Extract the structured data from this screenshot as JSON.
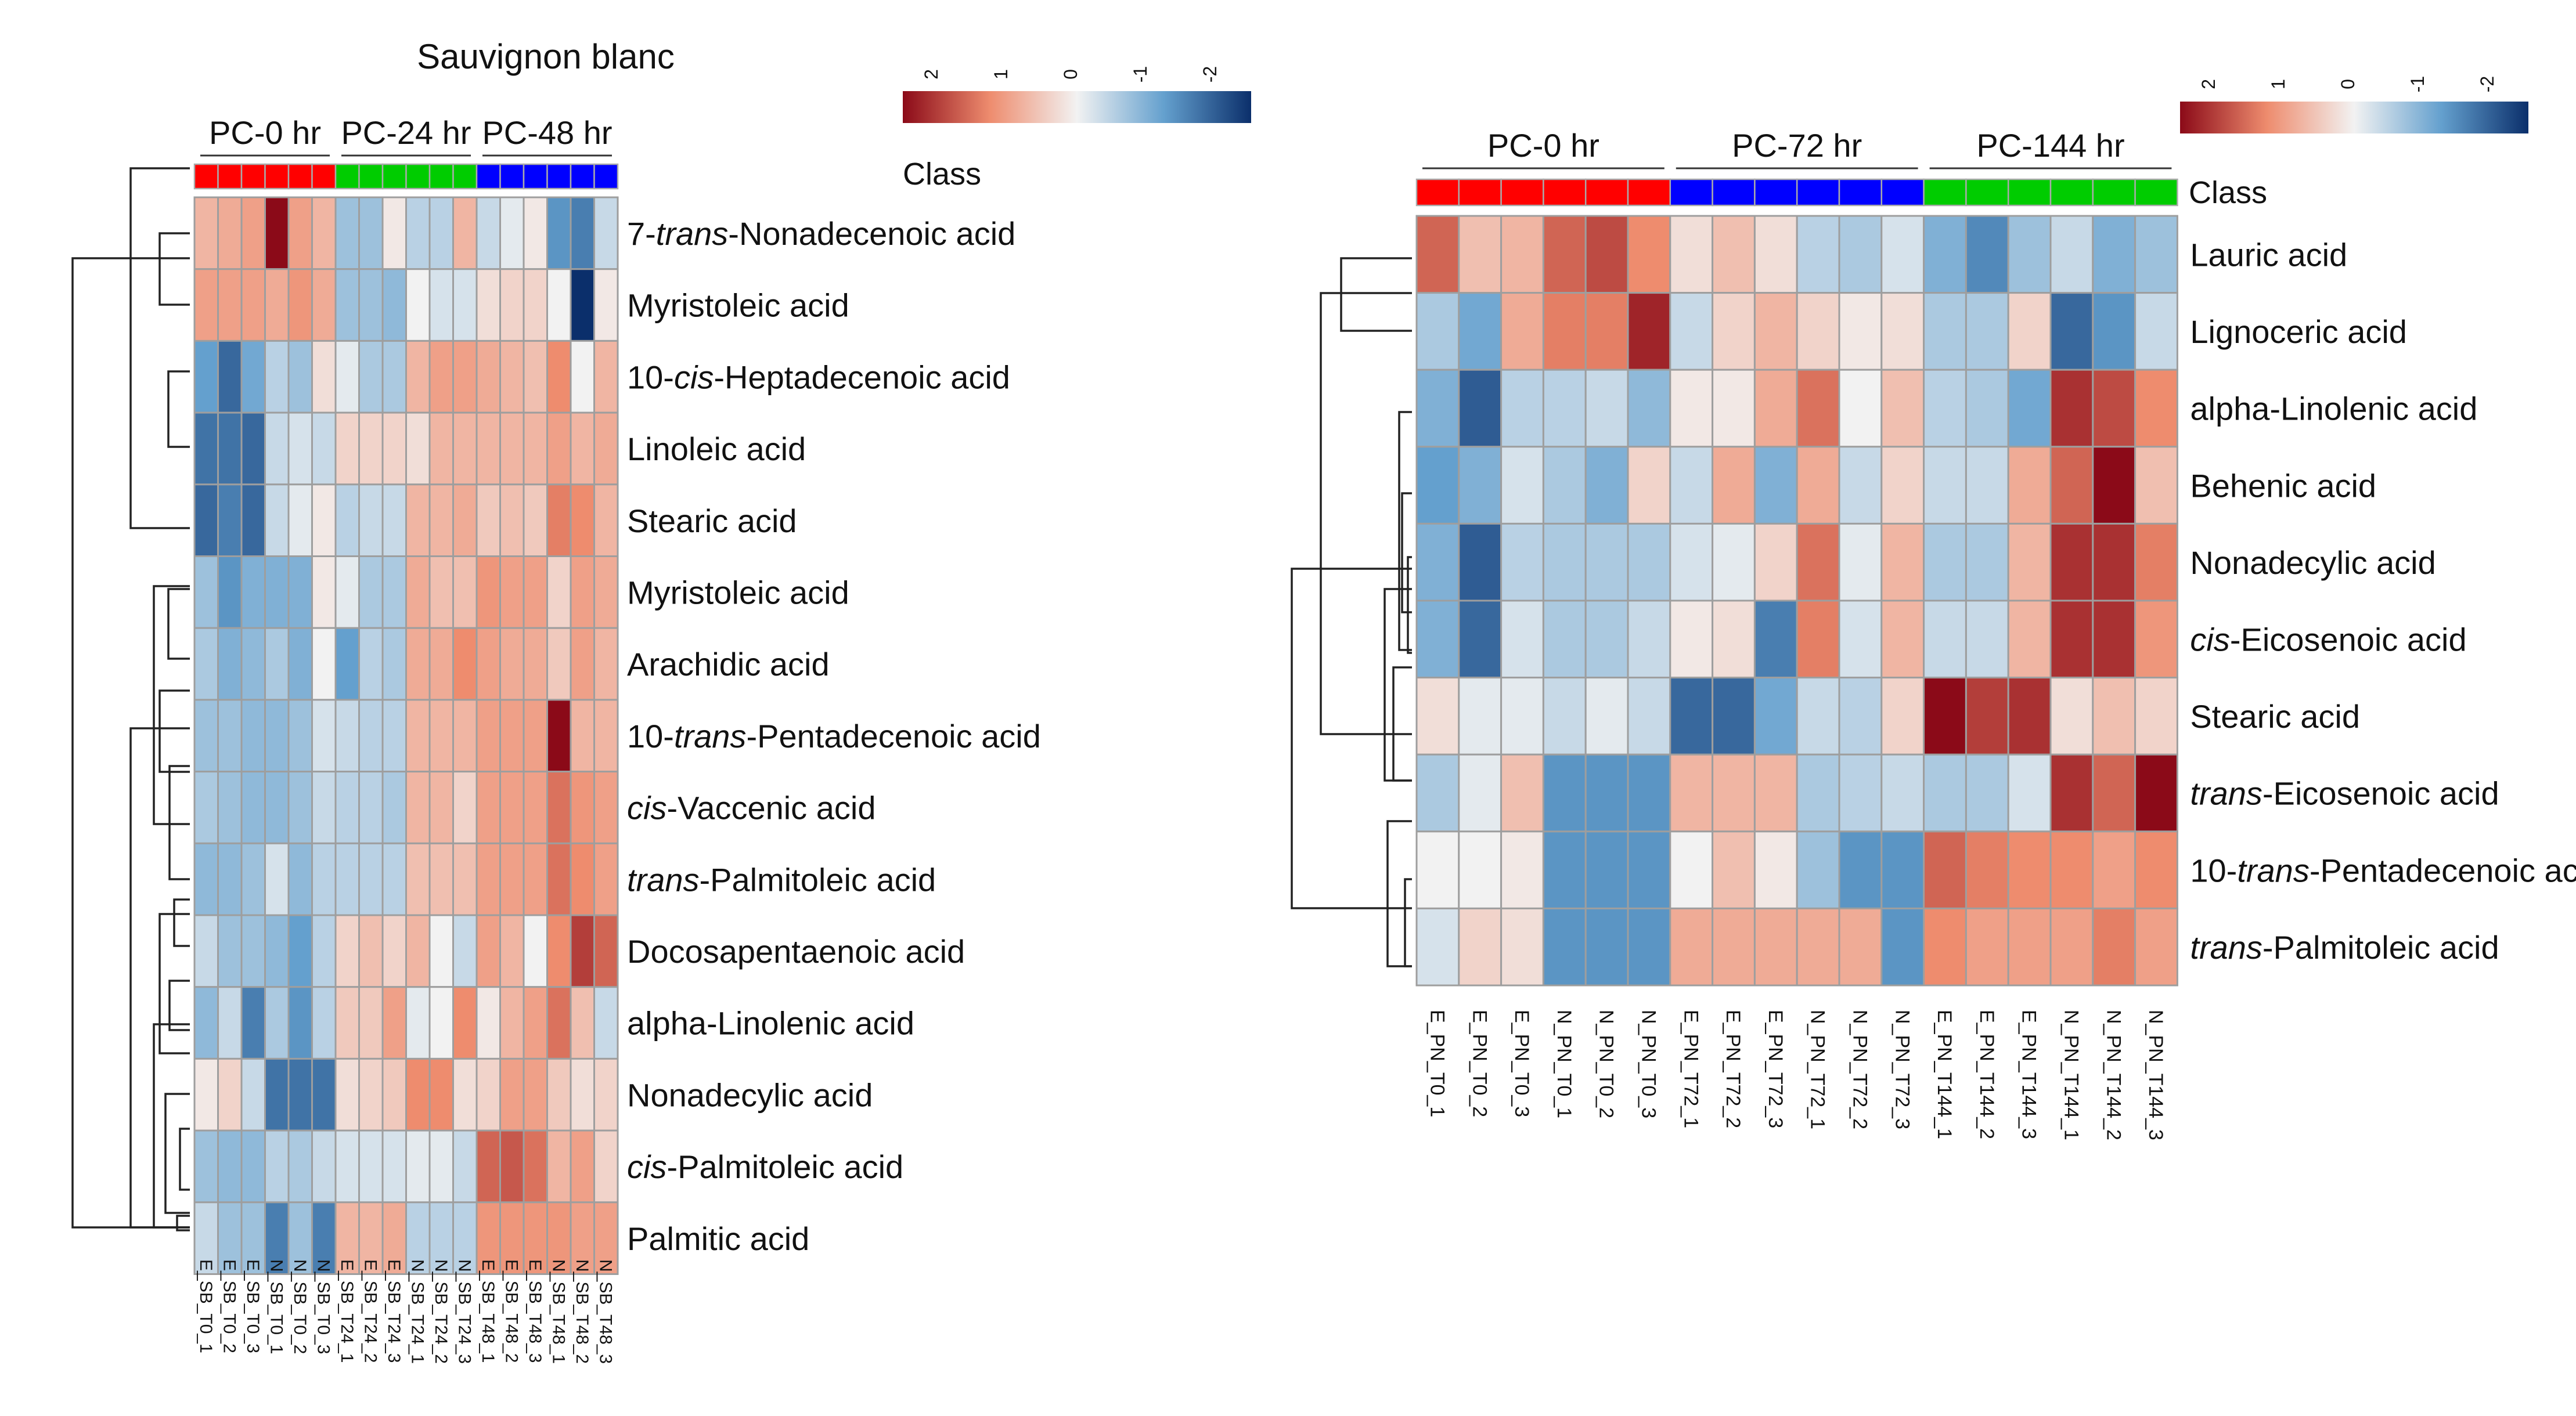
{
  "legend_ticks": [
    "2",
    "1",
    "0",
    "-1",
    "-2"
  ],
  "chart_data": [
    {
      "type": "heatmap",
      "title": "Sauvignon blanc",
      "class_label": "Class",
      "color_scale": {
        "min": -2,
        "max": 2,
        "low": "#0b2f6b",
        "mid": "#f2f2f2",
        "high": "#8b0a18"
      },
      "groups": [
        {
          "label": "PC-0 hr",
          "color": "#ff0000",
          "count": 6
        },
        {
          "label": "PC-24 hr",
          "color": "#00cc00",
          "count": 6
        },
        {
          "label": "PC-48 hr",
          "color": "#0000ff",
          "count": 6
        }
      ],
      "columns": [
        "E_SB_T0_1",
        "E_SB_T0_2",
        "E_SB_T0_3",
        "N_SB_T0_1",
        "N_SB_T0_2",
        "N_SB_T0_3",
        "E_SB_T24_1",
        "E_SB_T24_2",
        "E_SB_T24_3",
        "N_SB_T24_1",
        "N_SB_T24_2",
        "N_SB_T24_3",
        "E_SB_T48_1",
        "E_SB_T48_2",
        "E_SB_T48_3",
        "N_SB_T48_1",
        "N_SB_T48_2",
        "N_SB_T48_3"
      ],
      "rows": [
        {
          "pre": "7-",
          "it": "trans",
          "post": "-Nonadecenoic acid"
        },
        {
          "pre": "Myristoleic acid",
          "it": "",
          "post": ""
        },
        {
          "pre": "10-",
          "it": "cis",
          "post": "-Heptadecenoic acid"
        },
        {
          "pre": "Linoleic acid",
          "it": "",
          "post": ""
        },
        {
          "pre": "Stearic acid",
          "it": "",
          "post": ""
        },
        {
          "pre": "Myristoleic acid",
          "it": "",
          "post": ""
        },
        {
          "pre": "Arachidic acid",
          "it": "",
          "post": ""
        },
        {
          "pre": "10-",
          "it": "trans",
          "post": "-Pentadecenoic acid"
        },
        {
          "pre": "",
          "it": "cis",
          "post": "-Vaccenic acid"
        },
        {
          "pre": "",
          "it": "trans",
          "post": "-Palmitoleic acid"
        },
        {
          "pre": "Docosapentaenoic acid",
          "it": "",
          "post": ""
        },
        {
          "pre": "alpha-Linolenic acid",
          "it": "",
          "post": ""
        },
        {
          "pre": "Nonadecylic acid",
          "it": "",
          "post": ""
        },
        {
          "pre": "",
          "it": "cis",
          "post": "-Palmitoleic acid"
        },
        {
          "pre": "Palmitic acid",
          "it": "",
          "post": ""
        }
      ],
      "values": [
        [
          0.6,
          0.7,
          0.8,
          2.0,
          0.8,
          0.6,
          -0.6,
          -0.6,
          0.1,
          -0.4,
          -0.4,
          0.6,
          -0.3,
          -0.1,
          0.1,
          -1.1,
          -1.3,
          -0.3
        ],
        [
          0.8,
          0.8,
          0.8,
          0.7,
          0.9,
          0.7,
          -0.6,
          -0.6,
          -0.7,
          0.0,
          -0.2,
          -0.2,
          0.2,
          0.3,
          0.3,
          0.0,
          -2.0,
          0.1
        ],
        [
          -1.0,
          -1.5,
          -0.9,
          -0.4,
          -0.6,
          0.2,
          -0.1,
          -0.5,
          -0.5,
          0.6,
          0.8,
          0.8,
          0.7,
          0.6,
          0.5,
          1.0,
          0.0,
          0.6
        ],
        [
          -1.4,
          -1.4,
          -1.5,
          -0.3,
          -0.2,
          -0.3,
          0.3,
          0.3,
          0.3,
          0.2,
          0.6,
          0.6,
          0.6,
          0.6,
          0.6,
          0.8,
          0.6,
          0.7
        ],
        [
          -1.5,
          -1.3,
          -1.5,
          -0.3,
          -0.1,
          0.1,
          -0.4,
          -0.3,
          -0.3,
          0.6,
          0.6,
          0.7,
          0.4,
          0.5,
          0.4,
          1.1,
          1.0,
          0.6
        ],
        [
          -0.6,
          -1.1,
          -0.8,
          -0.8,
          -0.8,
          0.1,
          -0.1,
          -0.5,
          -0.5,
          0.7,
          0.5,
          0.5,
          0.9,
          0.8,
          0.8,
          0.3,
          0.8,
          0.7
        ],
        [
          -0.5,
          -0.8,
          -0.7,
          -0.5,
          -0.8,
          0.0,
          -1.0,
          -0.4,
          -0.5,
          0.7,
          0.7,
          1.0,
          0.8,
          0.7,
          0.7,
          0.4,
          0.8,
          0.6
        ],
        [
          -0.6,
          -0.6,
          -0.7,
          -0.7,
          -0.6,
          -0.2,
          -0.3,
          -0.4,
          -0.4,
          0.6,
          0.6,
          0.6,
          0.8,
          0.8,
          0.8,
          2.0,
          0.6,
          0.6
        ],
        [
          -0.5,
          -0.6,
          -0.7,
          -0.7,
          -0.6,
          -0.3,
          -0.4,
          -0.4,
          -0.5,
          0.6,
          0.6,
          0.3,
          0.8,
          0.8,
          0.8,
          1.2,
          0.9,
          0.8
        ],
        [
          -0.7,
          -0.7,
          -0.6,
          -0.2,
          -0.7,
          -0.4,
          -0.4,
          -0.4,
          -0.4,
          0.5,
          0.5,
          0.5,
          0.8,
          0.8,
          0.8,
          1.2,
          1.0,
          0.8
        ],
        [
          -0.3,
          -0.6,
          -0.6,
          -0.7,
          -1.0,
          -0.4,
          0.3,
          0.5,
          0.3,
          0.6,
          0.0,
          -0.3,
          0.8,
          0.6,
          0.0,
          1.0,
          1.6,
          1.3
        ],
        [
          -0.7,
          -0.3,
          -1.3,
          -0.5,
          -1.1,
          -0.4,
          0.4,
          0.4,
          0.8,
          -0.1,
          0.0,
          1.0,
          0.1,
          0.6,
          0.8,
          1.2,
          0.5,
          -0.3
        ],
        [
          0.1,
          0.3,
          -0.3,
          -1.4,
          -1.4,
          -1.4,
          0.2,
          0.3,
          0.4,
          1.0,
          1.0,
          0.2,
          0.3,
          0.8,
          0.8,
          0.4,
          0.2,
          0.3
        ],
        [
          -0.6,
          -0.7,
          -0.7,
          -0.4,
          -0.5,
          -0.3,
          -0.2,
          -0.2,
          -0.2,
          -0.1,
          -0.1,
          -0.3,
          1.3,
          1.4,
          1.2,
          0.6,
          0.8,
          0.3
        ],
        [
          -0.3,
          -0.6,
          -0.6,
          -1.3,
          -0.6,
          -1.3,
          0.6,
          0.6,
          0.7,
          -0.4,
          -0.4,
          -0.4,
          0.9,
          0.9,
          0.9,
          0.9,
          0.8,
          0.8
        ]
      ]
    },
    {
      "type": "heatmap",
      "title": "",
      "class_label": "Class",
      "color_scale": {
        "min": -2,
        "max": 2,
        "low": "#0b2f6b",
        "mid": "#f2f2f2",
        "high": "#8b0a18"
      },
      "groups": [
        {
          "label": "PC-0 hr",
          "color": "#ff0000",
          "count": 6
        },
        {
          "label": "PC-72 hr",
          "color": "#0000ff",
          "count": 6
        },
        {
          "label": "PC-144 hr",
          "color": "#00cc00",
          "count": 6
        }
      ],
      "columns": [
        "E_PN_T0_1",
        "E_PN_T0_2",
        "E_PN_T0_3",
        "N_PN_T0_1",
        "N_PN_T0_2",
        "N_PN_T0_3",
        "E_PN_T72_1",
        "E_PN_T72_2",
        "E_PN_T72_3",
        "N_PN_T72_1",
        "N_PN_T72_2",
        "N_PN_T72_3",
        "E_PN_T144_1",
        "E_PN_T144_2",
        "E_PN_T144_3",
        "N_PN_T144_1",
        "N_PN_T144_2",
        "N_PN_T144_3"
      ],
      "rows": [
        {
          "pre": "Lauric acid",
          "it": "",
          "post": ""
        },
        {
          "pre": "Lignoceric acid",
          "it": "",
          "post": ""
        },
        {
          "pre": "alpha-Linolenic acid",
          "it": "",
          "post": ""
        },
        {
          "pre": "Behenic acid",
          "it": "",
          "post": ""
        },
        {
          "pre": "Nonadecylic acid",
          "it": "",
          "post": ""
        },
        {
          "pre": "",
          "it": "cis",
          "post": "-Eicosenoic acid"
        },
        {
          "pre": "Stearic acid",
          "it": "",
          "post": ""
        },
        {
          "pre": "",
          "it": "trans",
          "post": "-Eicosenoic acid"
        },
        {
          "pre": "10-",
          "it": "trans",
          "post": "-Pentadecenoic acid"
        },
        {
          "pre": "",
          "it": "trans",
          "post": "-Palmitoleic acid"
        }
      ],
      "values": [
        [
          1.3,
          0.5,
          0.6,
          1.3,
          1.5,
          1.0,
          0.2,
          0.5,
          0.2,
          -0.4,
          -0.5,
          -0.2,
          -0.8,
          -1.2,
          -0.6,
          -0.3,
          -0.8,
          -0.6
        ],
        [
          -0.5,
          -0.9,
          0.7,
          1.1,
          1.1,
          1.8,
          -0.3,
          0.3,
          0.6,
          0.3,
          0.1,
          0.2,
          -0.5,
          -0.5,
          0.3,
          -1.5,
          -1.1,
          -0.3
        ],
        [
          -0.8,
          -1.6,
          -0.4,
          -0.4,
          -0.3,
          -0.7,
          0.1,
          0.1,
          0.7,
          1.2,
          0.0,
          0.5,
          -0.4,
          -0.5,
          -0.9,
          1.7,
          1.5,
          1.0
        ],
        [
          -1.0,
          -0.8,
          -0.2,
          -0.5,
          -0.8,
          0.3,
          -0.3,
          0.7,
          -0.8,
          0.7,
          -0.3,
          0.3,
          -0.3,
          -0.3,
          0.7,
          1.3,
          2.2,
          0.5
        ],
        [
          -0.8,
          -1.6,
          -0.4,
          -0.5,
          -0.5,
          -0.5,
          -0.2,
          -0.1,
          0.3,
          1.2,
          -0.1,
          0.6,
          -0.5,
          -0.5,
          0.6,
          1.7,
          1.7,
          1.1
        ],
        [
          -0.8,
          -1.5,
          -0.2,
          -0.5,
          -0.5,
          -0.3,
          0.1,
          0.2,
          -1.3,
          1.1,
          -0.2,
          0.6,
          -0.3,
          -0.3,
          0.6,
          1.7,
          1.7,
          0.9
        ],
        [
          0.2,
          -0.1,
          -0.1,
          -0.3,
          -0.1,
          -0.3,
          -1.5,
          -1.5,
          -0.9,
          -0.3,
          -0.4,
          0.3,
          2.0,
          1.6,
          1.7,
          0.2,
          0.5,
          0.3
        ],
        [
          -0.5,
          -0.1,
          0.5,
          -1.1,
          -1.1,
          -1.1,
          0.6,
          0.6,
          0.6,
          -0.5,
          -0.4,
          -0.3,
          -0.5,
          -0.5,
          -0.2,
          1.7,
          1.3,
          2.0
        ],
        [
          0.0,
          0.0,
          0.1,
          -1.1,
          -1.1,
          -1.1,
          0.0,
          0.5,
          0.1,
          -0.6,
          -1.1,
          -1.1,
          1.3,
          1.1,
          1.0,
          1.0,
          0.8,
          1.0
        ],
        [
          -0.2,
          0.3,
          0.2,
          -1.1,
          -1.1,
          -1.1,
          0.7,
          0.7,
          0.7,
          0.7,
          0.7,
          -1.1,
          1.0,
          0.8,
          0.8,
          0.8,
          1.1,
          0.8
        ]
      ]
    }
  ]
}
